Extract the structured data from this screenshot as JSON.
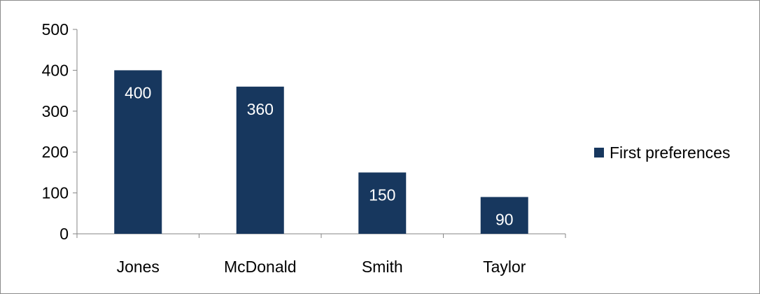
{
  "chart_data": {
    "type": "bar",
    "categories": [
      "Jones",
      "McDonald",
      "Smith",
      "Taylor"
    ],
    "series": [
      {
        "name": "First preferences",
        "values": [
          400,
          360,
          150,
          90
        ],
        "color": "#17375e"
      }
    ],
    "ylim": [
      0,
      500
    ],
    "yticks": [
      0,
      100,
      200,
      300,
      400,
      500
    ],
    "data_labels": [
      "400",
      "360",
      "150",
      "90"
    ],
    "grid": false,
    "legend_position": "right"
  }
}
